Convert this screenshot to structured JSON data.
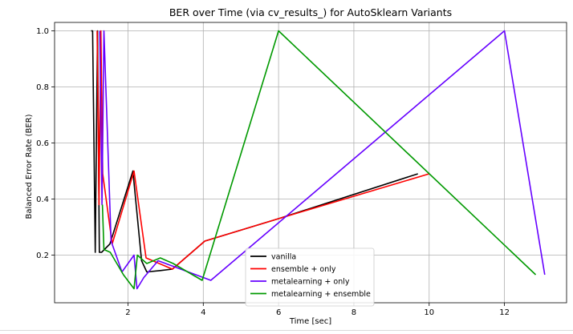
{
  "chart_data": {
    "type": "line",
    "title": "BER over Time (via cv_results_) for AutoSklearn Variants",
    "xlabel": "Time [sec]",
    "ylabel": "Balanced Error Rate (BER)",
    "xlim": [
      0.05,
      13.65
    ],
    "ylim": [
      0.03,
      1.03
    ],
    "xticks": [
      2,
      4,
      6,
      8,
      10,
      12
    ],
    "yticks": [
      0.2,
      0.4,
      0.6,
      0.8,
      1.0
    ],
    "xtick_labels": [
      "2",
      "4",
      "6",
      "8",
      "10",
      "12"
    ],
    "ytick_labels": [
      "0.2",
      "0.4",
      "0.6",
      "0.8",
      "1.0"
    ],
    "grid": true,
    "legend_position": "bottom-center",
    "series": [
      {
        "name": "vanilla",
        "color": "#000000",
        "x": [
          1.02,
          1.06,
          1.13,
          1.19,
          1.24,
          1.3,
          1.52,
          2.13,
          2.36,
          2.5,
          2.86,
          3.18,
          4.04,
          6.0,
          9.7
        ],
        "y": [
          1.0,
          1.0,
          0.21,
          1.0,
          0.21,
          0.21,
          0.24,
          0.5,
          0.18,
          0.14,
          0.145,
          0.15,
          0.25,
          0.33,
          0.49
        ]
      },
      {
        "name": "ensemble + only",
        "color": "#ff0000",
        "x": [
          1.18,
          1.23,
          1.28,
          1.33,
          1.58,
          2.16,
          2.48,
          2.83,
          3.18,
          4.04,
          6.0,
          10.0
        ],
        "y": [
          1.0,
          0.38,
          1.0,
          0.49,
          0.24,
          0.5,
          0.19,
          0.17,
          0.15,
          0.25,
          0.33,
          0.49
        ]
      },
      {
        "name": "metalearning + only",
        "color": "#6600ff",
        "x": [
          1.25,
          1.31,
          1.36,
          1.55,
          1.84,
          2.16,
          2.24,
          2.42,
          2.8,
          4.2,
          12.0,
          13.07
        ],
        "y": [
          1.0,
          0.38,
          1.0,
          0.25,
          0.14,
          0.2,
          0.08,
          0.12,
          0.18,
          0.11,
          1.0,
          0.13
        ]
      },
      {
        "name": "metalearning + ensemble",
        "color": "#009900",
        "x": [
          1.32,
          1.36,
          1.53,
          1.88,
          2.16,
          2.25,
          2.5,
          2.86,
          3.2,
          3.97,
          6.0,
          12.83
        ],
        "y": [
          0.38,
          0.22,
          0.21,
          0.13,
          0.08,
          0.2,
          0.17,
          0.19,
          0.17,
          0.11,
          1.0,
          0.13
        ]
      }
    ]
  }
}
